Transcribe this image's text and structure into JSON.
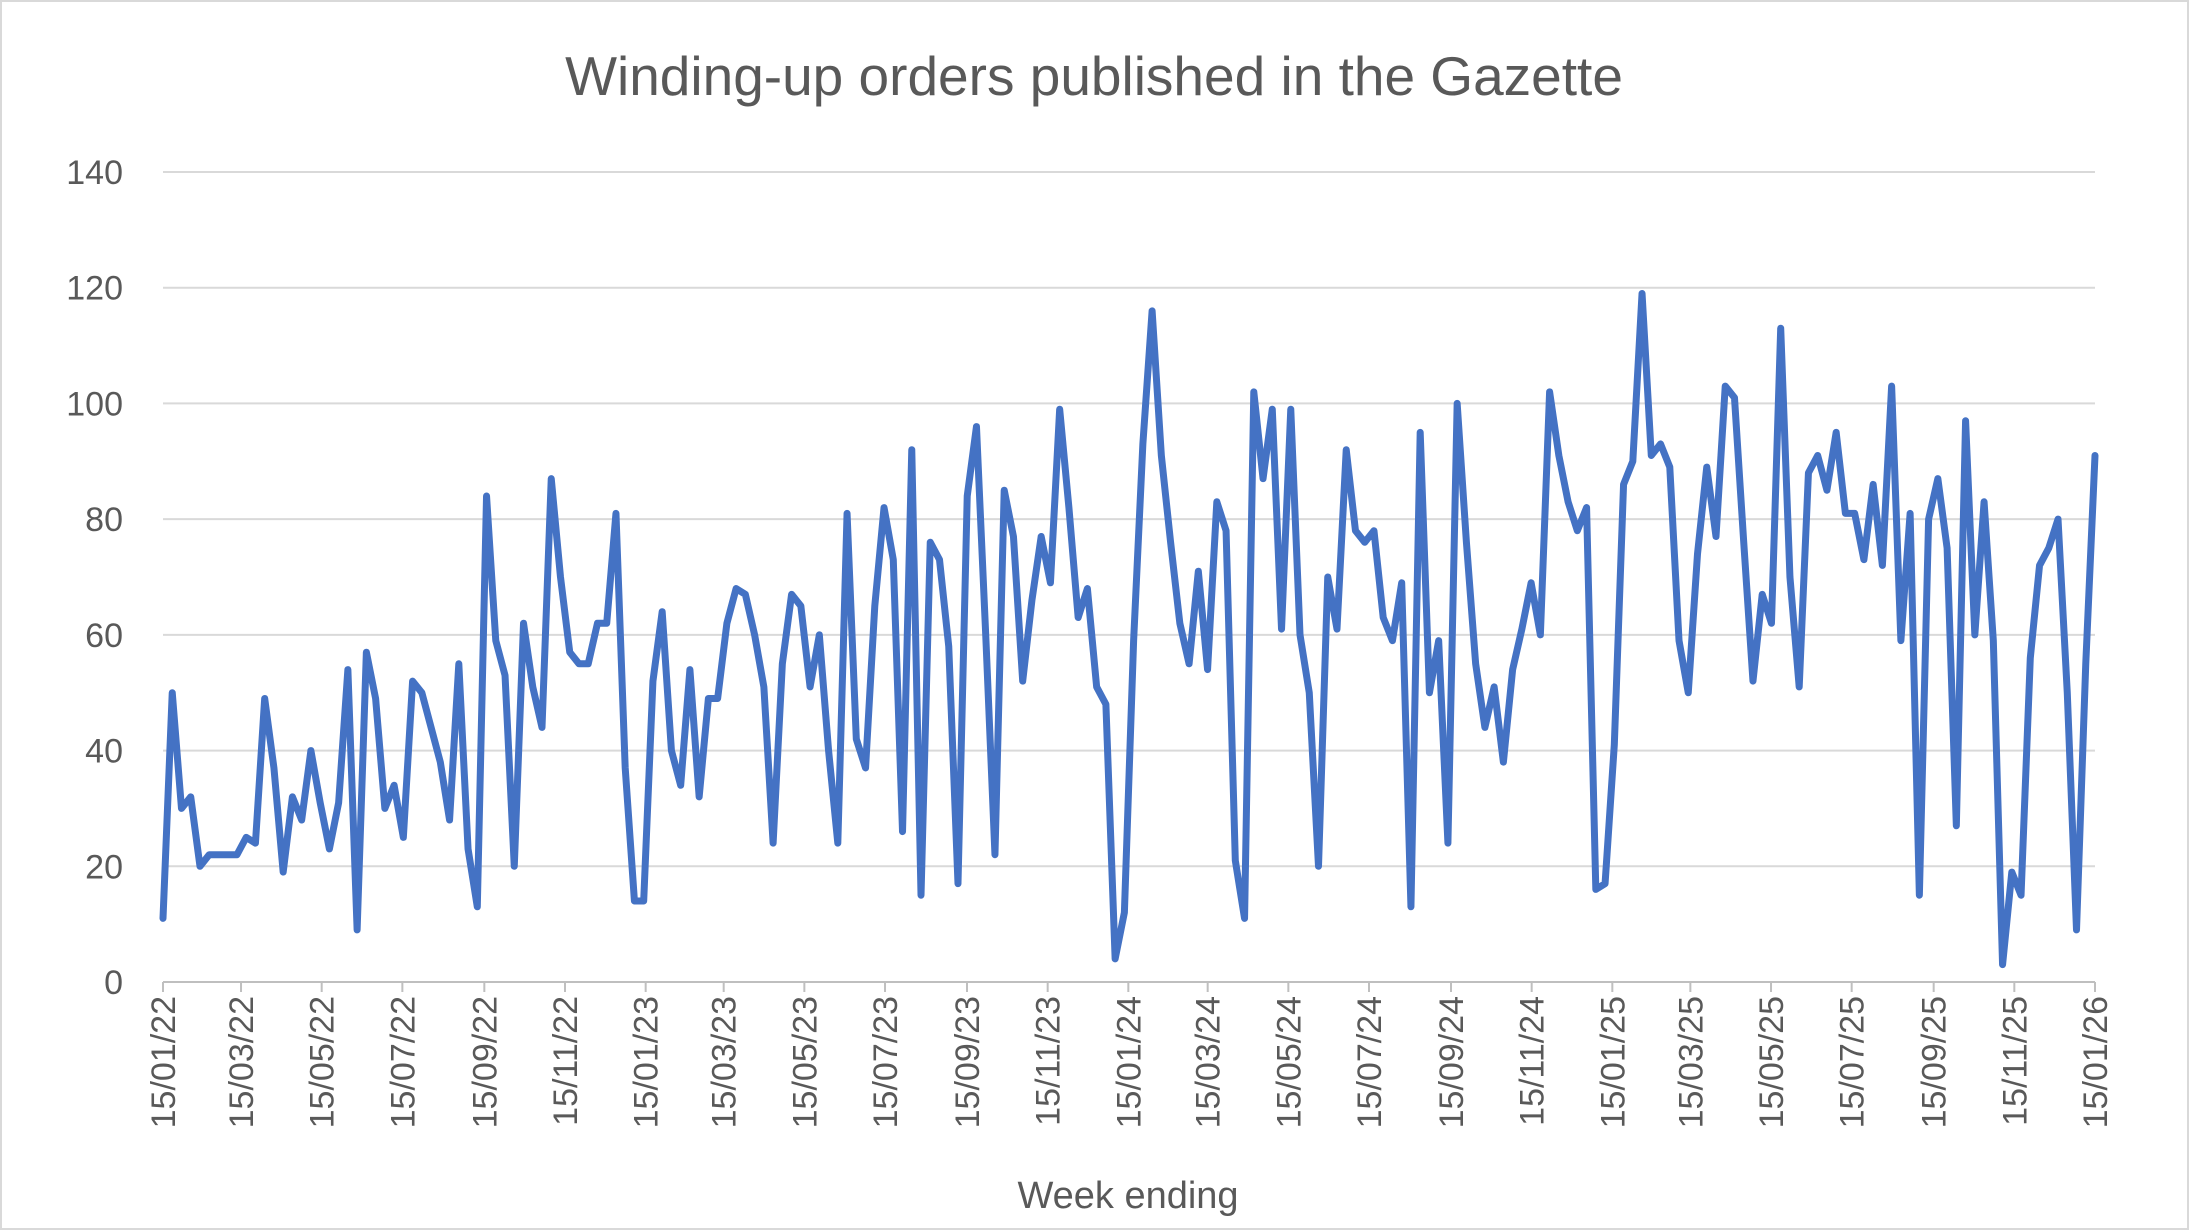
{
  "colors": {
    "series": "#4472c4",
    "grid": "#d9d9d9",
    "text": "#595959"
  },
  "chart_data": {
    "type": "line",
    "title": "Winding-up orders published in the Gazette",
    "xlabel": "Week ending",
    "ylabel": "",
    "ylim": [
      0,
      140
    ],
    "yticks": [
      0,
      20,
      40,
      60,
      80,
      100,
      120,
      140
    ],
    "grid": true,
    "legend": "none",
    "x_range": [
      "2022-01-15",
      "2026-01-15"
    ],
    "xticks": [
      "15/01/22",
      "15/03/22",
      "15/05/22",
      "15/07/22",
      "15/09/22",
      "15/11/22",
      "15/01/23",
      "15/03/23",
      "15/05/23",
      "15/07/23",
      "15/09/23",
      "15/11/23",
      "15/01/24",
      "15/03/24",
      "15/05/24",
      "15/07/24",
      "15/09/24",
      "15/11/24",
      "15/01/25",
      "15/03/25",
      "15/05/25",
      "15/07/25",
      "15/09/25",
      "15/11/25",
      "15/01/26"
    ],
    "series": [
      {
        "name": "",
        "values": [
          11,
          50,
          30,
          32,
          20,
          22,
          22,
          22,
          22,
          25,
          24,
          49,
          37,
          19,
          32,
          28,
          40,
          31,
          23,
          31,
          54,
          9,
          57,
          49,
          30,
          34,
          25,
          52,
          50,
          44,
          38,
          28,
          55,
          23,
          13,
          84,
          59,
          53,
          20,
          62,
          51,
          44,
          87,
          70,
          57,
          55,
          55,
          62,
          62,
          81,
          37,
          14,
          14,
          52,
          64,
          40,
          34,
          54,
          32,
          49,
          49,
          62,
          68,
          67,
          60,
          51,
          24,
          55,
          67,
          65,
          51,
          60,
          40,
          24,
          81,
          42,
          37,
          65,
          82,
          73,
          26,
          92,
          15,
          76,
          73,
          58,
          17,
          84,
          96,
          60,
          22,
          85,
          77,
          52,
          66,
          77,
          69,
          99,
          82,
          63,
          68,
          51,
          48,
          4,
          12,
          59,
          93,
          116,
          91,
          76,
          62,
          55,
          71,
          54,
          83,
          78,
          21,
          11,
          102,
          87,
          99,
          61,
          99,
          60,
          50,
          20,
          70,
          61,
          92,
          78,
          76,
          78,
          63,
          59,
          69,
          13,
          95,
          50,
          59,
          24,
          100,
          76,
          55,
          44,
          51,
          38,
          54,
          61,
          69,
          60,
          102,
          91,
          83,
          78,
          82,
          16,
          17,
          41,
          86,
          90,
          119,
          91,
          93,
          89,
          59,
          50,
          74,
          89,
          77,
          103,
          101,
          76,
          52,
          67,
          62,
          113,
          70,
          51,
          88,
          91,
          85,
          95,
          81,
          81,
          73,
          86,
          72,
          103,
          59,
          81,
          15,
          80,
          87,
          75,
          27,
          97,
          60,
          83,
          59,
          3,
          19,
          15,
          56,
          72,
          75,
          80,
          50,
          9,
          55,
          91
        ]
      }
    ]
  }
}
